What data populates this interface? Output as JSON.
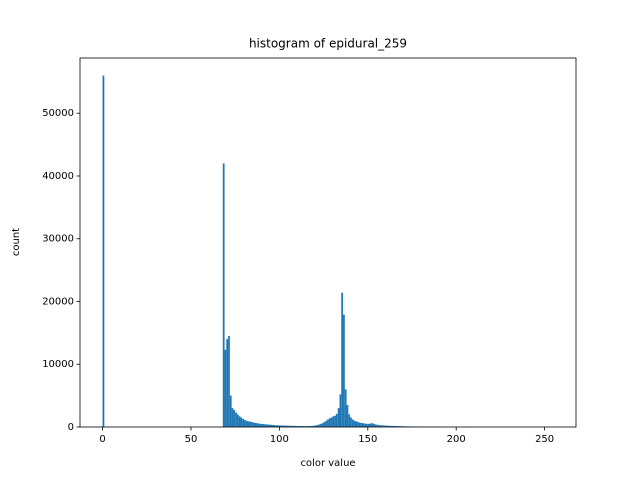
{
  "chart_data": {
    "type": "histogram",
    "title": "histogram of epidural_259",
    "xlabel": "color value",
    "ylabel": "count",
    "color": "#1f77b4",
    "bins": [
      0,
      1,
      2,
      3,
      4,
      5,
      6,
      7,
      8,
      9,
      10,
      11,
      12,
      13,
      14,
      15,
      16,
      17,
      18,
      19,
      20,
      21,
      22,
      23,
      24,
      25,
      26,
      27,
      28,
      29,
      30,
      31,
      32,
      33,
      34,
      35,
      36,
      37,
      38,
      39,
      40,
      41,
      42,
      43,
      44,
      45,
      46,
      47,
      48,
      49,
      50,
      51,
      52,
      53,
      54,
      55,
      56,
      57,
      58,
      59,
      60,
      61,
      62,
      63,
      64,
      65,
      66,
      67,
      68,
      69,
      70,
      71,
      72,
      73,
      74,
      75,
      76,
      77,
      78,
      79,
      80,
      81,
      82,
      83,
      84,
      85,
      86,
      87,
      88,
      89,
      90,
      91,
      92,
      93,
      94,
      95,
      96,
      97,
      98,
      99,
      100,
      101,
      102,
      103,
      104,
      105,
      106,
      107,
      108,
      109,
      110,
      111,
      112,
      113,
      114,
      115,
      116,
      117,
      118,
      119,
      120,
      121,
      122,
      123,
      124,
      125,
      126,
      127,
      128,
      129,
      130,
      131,
      132,
      133,
      134,
      135,
      136,
      137,
      138,
      139,
      140,
      141,
      142,
      143,
      144,
      145,
      146,
      147,
      148,
      149,
      150,
      151,
      152,
      153,
      154,
      155,
      156,
      157,
      158,
      159,
      160,
      161,
      162,
      163,
      164,
      165,
      166,
      167,
      168,
      169,
      170,
      171,
      172,
      173,
      174,
      175,
      176,
      177,
      178,
      179,
      180,
      181,
      182,
      183,
      184,
      185,
      186,
      187,
      188,
      189,
      190,
      191,
      192,
      193,
      194,
      195,
      196,
      197,
      198,
      199,
      200,
      201,
      202,
      203,
      204,
      205,
      206,
      207,
      208,
      209,
      210,
      211,
      212,
      213,
      214,
      215,
      216,
      217,
      218,
      219,
      220,
      221,
      222,
      223,
      224,
      225,
      226,
      227,
      228,
      229,
      230,
      231,
      232,
      233,
      234,
      235,
      236,
      237,
      238,
      239,
      240,
      241,
      242,
      243,
      244,
      245,
      246,
      247,
      248,
      249,
      250,
      251,
      252,
      253,
      254,
      255
    ],
    "counts": [
      56000,
      0,
      0,
      0,
      0,
      0,
      0,
      0,
      0,
      0,
      0,
      0,
      0,
      0,
      0,
      0,
      0,
      0,
      0,
      0,
      0,
      0,
      0,
      0,
      0,
      0,
      0,
      0,
      0,
      0,
      0,
      0,
      0,
      0,
      0,
      0,
      0,
      0,
      0,
      0,
      0,
      0,
      0,
      0,
      0,
      0,
      0,
      0,
      0,
      0,
      0,
      0,
      0,
      0,
      0,
      0,
      0,
      0,
      0,
      0,
      0,
      0,
      0,
      0,
      0,
      0,
      0,
      0,
      42000,
      12300,
      14000,
      14500,
      5000,
      3000,
      2700,
      2300,
      2000,
      1700,
      1500,
      1300,
      1100,
      1000,
      900,
      850,
      800,
      700,
      650,
      600,
      550,
      500,
      480,
      450,
      420,
      400,
      380,
      350,
      330,
      300,
      280,
      260,
      250,
      240,
      230,
      220,
      210,
      200,
      200,
      190,
      180,
      170,
      160,
      160,
      150,
      150,
      140,
      140,
      150,
      160,
      180,
      200,
      250,
      300,
      400,
      500,
      600,
      800,
      1000,
      1200,
      1400,
      1500,
      1700,
      1800,
      2100,
      3000,
      5200,
      21400,
      17900,
      6000,
      3500,
      2000,
      1500,
      1200,
      1000,
      900,
      800,
      700,
      650,
      600,
      550,
      500,
      500,
      550,
      600,
      500,
      400,
      350,
      300,
      280,
      260,
      240,
      220,
      200,
      190,
      180,
      170,
      160,
      150,
      140,
      130,
      120,
      110,
      100,
      95,
      90,
      85,
      80,
      75,
      70,
      65,
      60,
      55,
      50,
      48,
      46,
      44,
      42,
      40,
      38,
      36,
      34,
      32,
      30,
      28,
      26,
      24,
      22,
      20,
      20,
      18,
      16,
      15,
      14,
      13,
      12,
      11,
      10,
      9,
      8,
      7,
      6,
      5,
      5,
      5,
      4,
      4,
      4,
      3,
      3,
      3,
      2,
      2,
      2,
      2,
      2,
      2,
      2,
      2,
      30,
      2,
      1,
      1,
      0,
      0,
      0,
      0,
      0,
      0,
      0,
      0,
      0,
      0,
      0,
      0,
      0,
      0,
      0,
      0,
      0,
      0,
      0,
      0,
      0,
      0,
      0,
      0
    ],
    "xlim": [
      -12.75,
      267.75
    ],
    "ylim": [
      0,
      58800
    ],
    "xticks": [
      0,
      50,
      100,
      150,
      200,
      250
    ],
    "yticks": [
      0,
      10000,
      20000,
      30000,
      40000,
      50000
    ]
  }
}
